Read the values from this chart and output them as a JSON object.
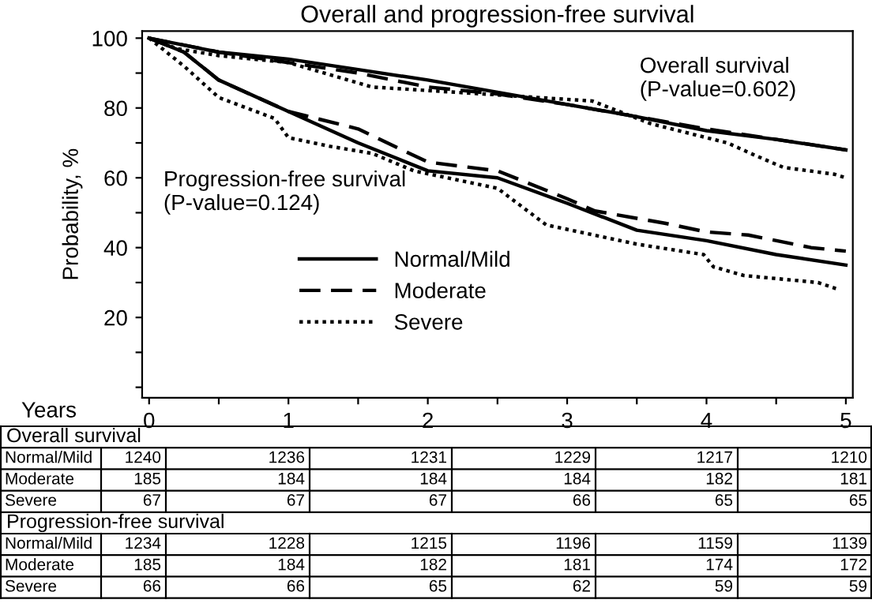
{
  "chart_data": {
    "type": "line",
    "title": "Overall and progression-free survival",
    "xlabel": "Years",
    "ylabel": "Probability, %",
    "xlim": [
      -0.05,
      5.05
    ],
    "ylim": [
      -3,
      102
    ],
    "xticks": [
      0,
      {
        "value": 0.5,
        "label": null
      },
      1,
      {
        "value": 1.5,
        "label": null
      },
      2,
      {
        "value": 2.5,
        "label": null
      },
      3,
      {
        "value": 3.5,
        "label": null
      },
      4,
      {
        "value": 4.5,
        "label": null
      },
      5
    ],
    "yticks": [
      {
        "value": 0,
        "label": null
      },
      {
        "value": 10,
        "label": null
      },
      20,
      {
        "value": 30,
        "label": null
      },
      40,
      {
        "value": 50,
        "label": null
      },
      60,
      {
        "value": 70,
        "label": null
      },
      80,
      {
        "value": 90,
        "label": null
      },
      100
    ],
    "grid": false,
    "legend": "lower center",
    "marker": "none",
    "series": [
      {
        "name": "Normal/Mild",
        "color": "#000000",
        "line_style": "solid",
        "x": [
          0,
          0.25,
          0.5,
          1,
          1.5,
          2,
          2.5,
          3,
          3.5,
          4,
          4.5,
          5
        ],
        "values": [
          100,
          98,
          96,
          94,
          91,
          88,
          84.5,
          81,
          77.5,
          73.5,
          71,
          68
        ]
      },
      {
        "name": "Moderate",
        "color": "#000000",
        "line_style": "dashed",
        "x": [
          0,
          0.25,
          0.5,
          1,
          1.5,
          2,
          2.5,
          3,
          3.5,
          4,
          4.5,
          5
        ],
        "values": [
          100,
          98,
          96,
          93,
          90,
          86,
          84,
          81,
          77.5,
          74,
          71,
          68
        ]
      },
      {
        "name": "Severe",
        "color": "#000000",
        "line_style": "dotted",
        "x": [
          0,
          0.2,
          0.5,
          1,
          1.6,
          2.4,
          3.18,
          3.6,
          4.15,
          4.35,
          4.55,
          4.92,
          5
        ],
        "values": [
          100,
          97,
          95,
          93,
          86,
          84,
          82,
          75.5,
          70,
          66.4,
          63,
          61,
          60
        ]
      },
      {
        "color": "#000000",
        "line_style": "solid",
        "x": [
          0,
          0.25,
          0.5,
          1,
          1.5,
          2,
          2.5,
          3,
          3.5,
          4,
          4.5,
          5
        ],
        "values": [
          100,
          96,
          88,
          79,
          70,
          62,
          60,
          52.7,
          45,
          42,
          38,
          35
        ]
      },
      {
        "color": "#000000",
        "line_style": "dashed",
        "x": [
          0,
          0.25,
          0.5,
          1,
          1.2,
          1.5,
          2,
          2.5,
          3,
          3.2,
          3.7,
          4,
          4.3,
          4.75,
          5
        ],
        "values": [
          100,
          96,
          88,
          79,
          77,
          74,
          64.5,
          62,
          54,
          50.5,
          47,
          44.5,
          43.6,
          40,
          39
        ]
      },
      {
        "color": "#000000",
        "line_style": "dotted",
        "x": [
          0,
          0.25,
          0.5,
          0.9,
          1,
          1.3,
          1.6,
          1.9,
          2.5,
          2.85,
          3.5,
          3.98,
          4.05,
          4.27,
          4.8,
          4.95
        ],
        "values": [
          100,
          92,
          83,
          77,
          71.5,
          69,
          67,
          62,
          57,
          46.5,
          41,
          38,
          34.5,
          32,
          30,
          28
        ]
      }
    ],
    "annotations": [
      "Overall survival\n(P-value=0.602)",
      "Progression-free survival\n(P-value=0.124)",
      "Overall survival",
      "Normal/Mild",
      "1240",
      "1236",
      "1231",
      "1229",
      "1217",
      "1210",
      "Moderate",
      "185",
      "184",
      "184",
      "184",
      "182",
      "181",
      "Severe",
      "67",
      "67",
      "67",
      "66",
      "65",
      "65",
      "Progression-free survival",
      "Normal/Mild",
      "1234",
      "1228",
      "1215",
      "1196",
      "1159",
      "1139",
      "Moderate",
      "185",
      "184",
      "182",
      "181",
      "174",
      "172",
      "Severe",
      "66",
      "66",
      "65",
      "62",
      "59",
      "59"
    ]
  }
}
